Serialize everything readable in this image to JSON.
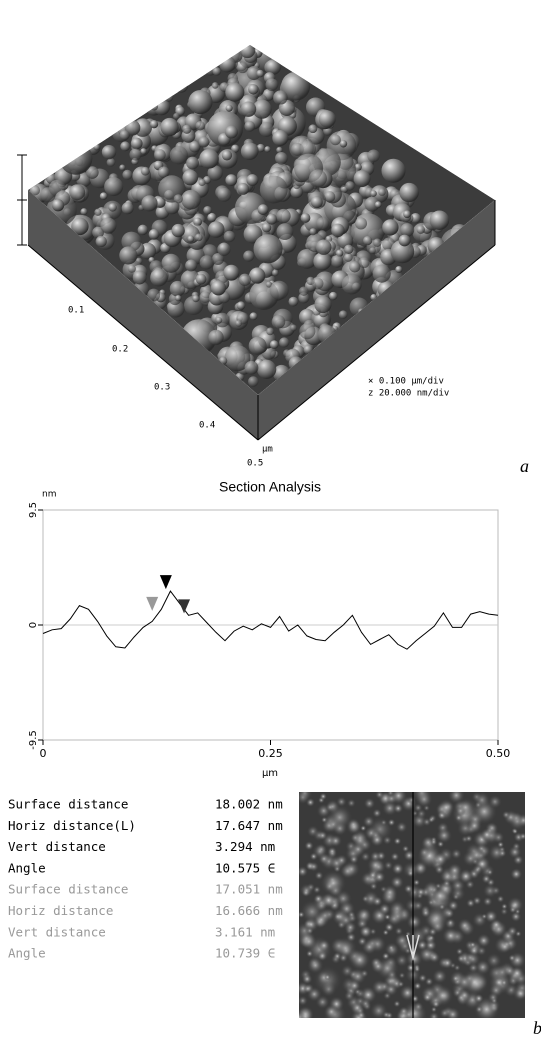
{
  "panel_a": {
    "axis_labels": [
      "0.1",
      "0.2",
      "0.3",
      "0.4",
      "0.5"
    ],
    "axis_unit": "µm",
    "scale": [
      "× 0.100 µm/div",
      "z 20.000 nm/div"
    ],
    "letter": "a"
  },
  "chart_data": {
    "type": "line",
    "title": "Section Analysis",
    "y_label": "nm",
    "x_label": "µm",
    "x": [
      0,
      0.01,
      0.02,
      0.03,
      0.04,
      0.05,
      0.06,
      0.07,
      0.08,
      0.09,
      0.1,
      0.11,
      0.12,
      0.13,
      0.14,
      0.15,
      0.16,
      0.17,
      0.18,
      0.19,
      0.2,
      0.21,
      0.22,
      0.23,
      0.24,
      0.25,
      0.26,
      0.27,
      0.28,
      0.29,
      0.3,
      0.31,
      0.32,
      0.33,
      0.34,
      0.35,
      0.36,
      0.37,
      0.38,
      0.39,
      0.4,
      0.41,
      0.42,
      0.43,
      0.44,
      0.45,
      0.46,
      0.47,
      0.48,
      0.49,
      0.5
    ],
    "values": [
      -0.7,
      -0.4,
      -0.3,
      0.5,
      1.6,
      1.3,
      0.3,
      -0.9,
      -1.8,
      -1.9,
      -1.0,
      -0.2,
      0.3,
      1.3,
      2.8,
      1.8,
      0.8,
      1.0,
      0.2,
      -0.6,
      -1.3,
      -0.5,
      -0.1,
      -0.4,
      0.1,
      -0.2,
      0.7,
      -0.5,
      0.0,
      -0.9,
      -1.2,
      -1.3,
      -0.6,
      0.0,
      0.8,
      -0.6,
      -1.6,
      -1.2,
      -0.8,
      -1.6,
      -2.0,
      -1.3,
      -0.7,
      -0.1,
      1.0,
      -0.2,
      -0.2,
      0.9,
      1.1,
      0.9,
      0.8
    ],
    "color": "#000000",
    "xlim": [
      0,
      0.5
    ],
    "ylim": [
      -9.5,
      9.5
    ],
    "xticks": [
      0,
      0.25,
      {
        "value": 0.5,
        "label": "0.50"
      }
    ],
    "yticks": [
      -9.5,
      0,
      9.5
    ],
    "cursors": [
      {
        "x": 0.12,
        "y": 1.0,
        "color": "#999999"
      },
      {
        "x": 0.135,
        "y": 2.8,
        "color": "#000000"
      },
      {
        "x": 0.155,
        "y": 0.8,
        "color": "#333333"
      }
    ]
  },
  "measurements": {
    "rows": [
      {
        "label": "Surface distance",
        "value": "18.002 nm",
        "color": "#000000"
      },
      {
        "label": "Horiz distance(L)",
        "value": "17.647 nm",
        "color": "#000000"
      },
      {
        "label": "Vert distance",
        "value": "3.294 nm",
        "color": "#000000"
      },
      {
        "label": "Angle",
        "value": "10.575 ∈",
        "color": "#000000"
      },
      {
        "label": "Surface distance",
        "value": "17.051 nm",
        "color": "#999999"
      },
      {
        "label": "Horiz distance",
        "value": "16.666 nm",
        "color": "#999999"
      },
      {
        "label": "Vert distance",
        "value": "3.161 nm",
        "color": "#999999"
      },
      {
        "label": "Angle",
        "value": "10.739 ∈",
        "color": "#999999"
      }
    ]
  },
  "panel_b": {
    "letter": "b"
  }
}
